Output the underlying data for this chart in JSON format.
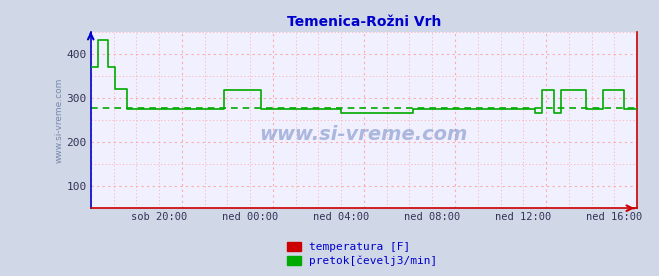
{
  "title": "Temenica-Rožni Vrh",
  "title_color": "#0000cc",
  "bg_color": "#d0d8e8",
  "plot_bg_color": "#f0f0ff",
  "grid_color": "#ffaaaa",
  "grid_minor_color": "#ffcccc",
  "border_color": "#0000cc",
  "bottom_spine_color": "#cc0000",
  "right_arrow_color": "#cc0000",
  "watermark": "www.si-vreme.com",
  "watermark_color": "#8899cc",
  "ylabel_text": "www.si-vreme.com",
  "ylabel_color": "#7788aa",
  "xlim": [
    0,
    288
  ],
  "ylim": [
    50,
    450
  ],
  "yticks": [
    100,
    200,
    300,
    400
  ],
  "xtick_labels": [
    "sob 20:00",
    "ned 00:00",
    "ned 04:00",
    "ned 08:00",
    "ned 12:00",
    "ned 16:00"
  ],
  "xtick_positions": [
    36,
    84,
    132,
    180,
    228,
    276
  ],
  "temperatura_color": "#cc0000",
  "pretok_color": "#00aa00",
  "avg_pretok": 278,
  "legend_temperatura": "temperatura [F]",
  "legend_pretok": "pretok[čevelj3/min]"
}
